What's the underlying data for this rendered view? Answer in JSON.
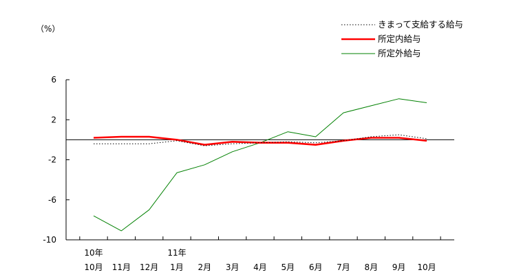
{
  "chart_data": {
    "type": "line",
    "ylabel": "（%）",
    "ylim": [
      -10,
      6
    ],
    "yticks": [
      6,
      2,
      -2,
      -6,
      -10
    ],
    "ytick_labels": [
      "6",
      "2",
      "-2",
      "-6",
      "-10"
    ],
    "categories": [
      "10月",
      "11月",
      "12月",
      "1月",
      "2月",
      "3月",
      "4月",
      "5月",
      "6月",
      "7月",
      "8月",
      "9月",
      "10月"
    ],
    "year_labels": [
      {
        "index": 0,
        "label": "10年"
      },
      {
        "index": 3,
        "label": "11年"
      }
    ],
    "legend_position": "top-right",
    "grid": false,
    "series": [
      {
        "name": "きまって支給する給与",
        "color": "#000000",
        "style": "dotted",
        "values": [
          -0.4,
          -0.4,
          -0.4,
          -0.1,
          -0.6,
          -0.4,
          -0.3,
          -0.2,
          -0.3,
          -0.1,
          0.3,
          0.5,
          0.1
        ]
      },
      {
        "name": "所定内給与",
        "color": "#ff0000",
        "style": "solid-thick",
        "values": [
          0.2,
          0.3,
          0.3,
          0.0,
          -0.5,
          -0.2,
          -0.3,
          -0.3,
          -0.5,
          -0.1,
          0.2,
          0.2,
          -0.1
        ]
      },
      {
        "name": "所定外給与",
        "color": "#008000",
        "style": "solid",
        "values": [
          -7.6,
          -9.1,
          -7.0,
          -3.3,
          -2.5,
          -1.2,
          -0.3,
          0.8,
          0.3,
          2.7,
          3.4,
          4.1,
          3.7
        ]
      }
    ]
  }
}
